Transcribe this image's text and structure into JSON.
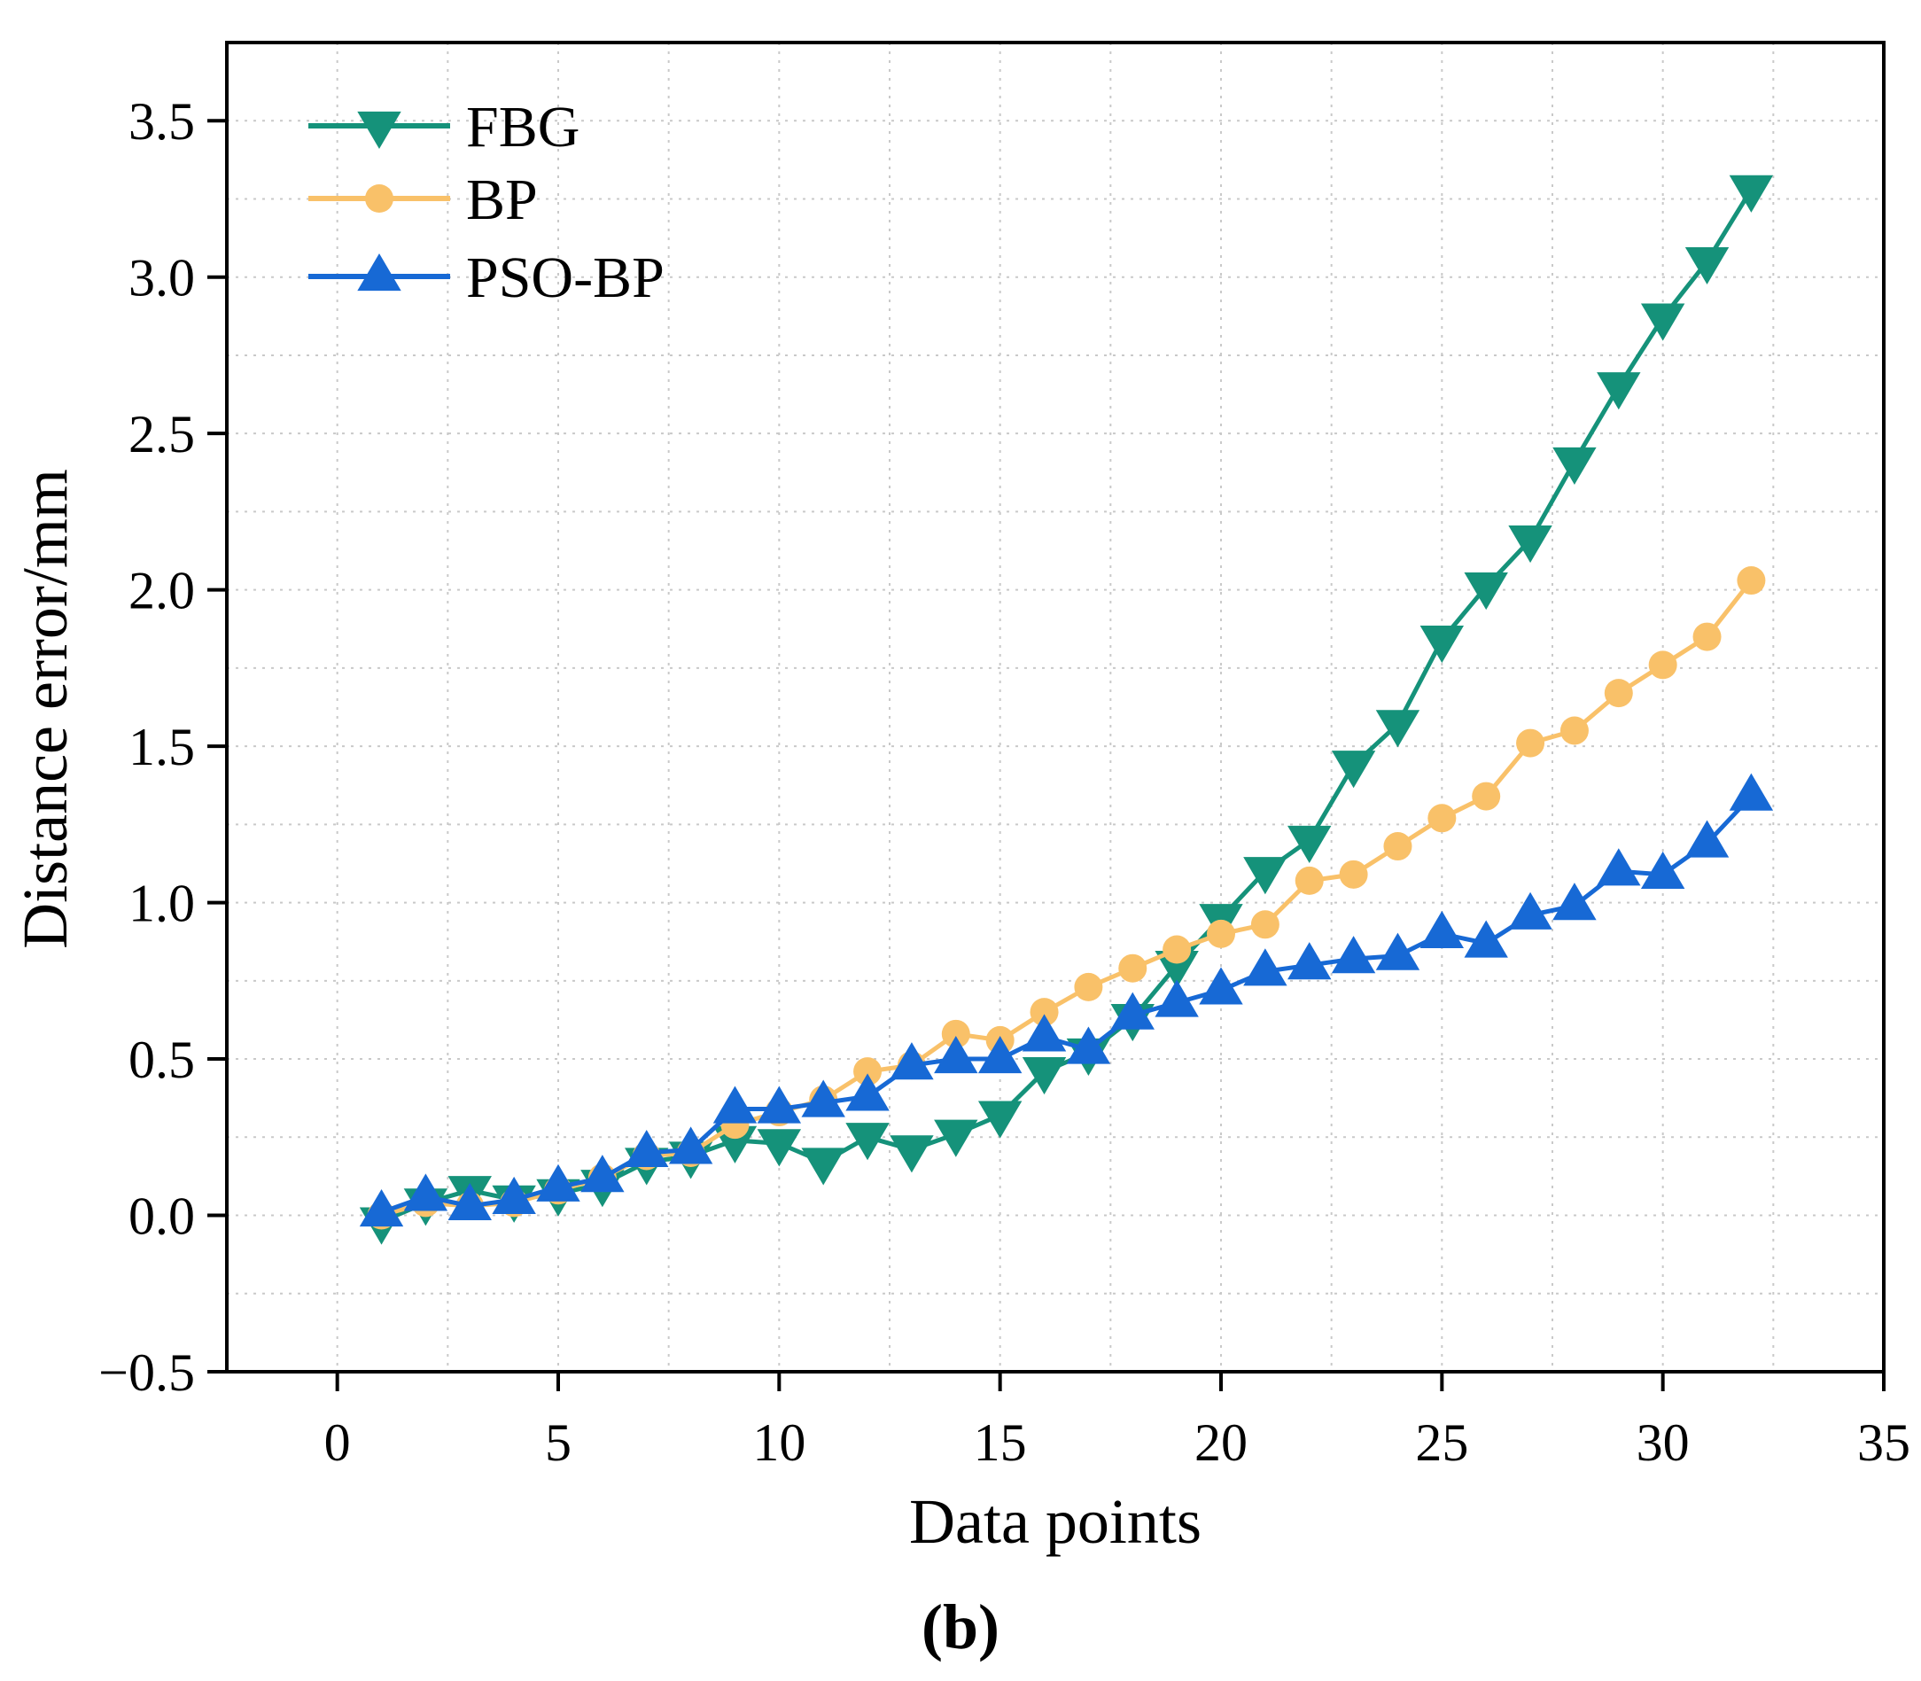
{
  "chart_data": {
    "type": "line",
    "title": "",
    "xlabel": "Data points",
    "ylabel": "Distance error/mm",
    "panel_label": "(b)",
    "xlim": [
      -2.5,
      35
    ],
    "ylim": [
      -0.5,
      3.75
    ],
    "xticks": [
      0,
      5,
      10,
      15,
      20,
      25,
      30,
      35
    ],
    "xtick_labels": [
      "0",
      "5",
      "10",
      "15",
      "20",
      "25",
      "30",
      "35"
    ],
    "yticks": [
      -0.5,
      0.0,
      0.5,
      1.0,
      1.5,
      2.0,
      2.5,
      3.0,
      3.5
    ],
    "ytick_labels": [
      "−0.5",
      "0.0",
      "0.5",
      "1.0",
      "1.5",
      "2.0",
      "2.5",
      "3.0",
      "3.5"
    ],
    "grid": true,
    "legend_position": "top-left",
    "x": [
      1,
      2,
      3,
      4,
      5,
      6,
      7,
      8,
      9,
      10,
      11,
      12,
      13,
      14,
      15,
      16,
      17,
      18,
      19,
      20,
      21,
      22,
      23,
      24,
      25,
      26,
      27,
      28,
      29,
      30,
      31,
      32
    ],
    "series": [
      {
        "name": "FBG",
        "color": "#15927a",
        "marker": "triangle-down",
        "values": [
          -0.02,
          0.04,
          0.08,
          0.05,
          0.07,
          0.1,
          0.17,
          0.19,
          0.24,
          0.23,
          0.17,
          0.25,
          0.21,
          0.26,
          0.32,
          0.46,
          0.52,
          0.63,
          0.8,
          0.95,
          1.1,
          1.2,
          1.44,
          1.57,
          1.84,
          2.01,
          2.16,
          2.41,
          2.65,
          2.87,
          3.05,
          3.28
        ]
      },
      {
        "name": "BP",
        "color": "#f9c169",
        "marker": "circle",
        "values": [
          0.0,
          0.04,
          0.03,
          0.04,
          0.08,
          0.12,
          0.19,
          0.2,
          0.29,
          0.33,
          0.37,
          0.46,
          0.48,
          0.58,
          0.56,
          0.65,
          0.73,
          0.79,
          0.85,
          0.9,
          0.93,
          1.07,
          1.09,
          1.18,
          1.27,
          1.34,
          1.51,
          1.55,
          1.67,
          1.76,
          1.85,
          2.03
        ]
      },
      {
        "name": "PSO-BP",
        "color": "#1769d5",
        "marker": "triangle-up",
        "values": [
          0.01,
          0.06,
          0.03,
          0.05,
          0.09,
          0.12,
          0.2,
          0.21,
          0.34,
          0.34,
          0.36,
          0.38,
          0.48,
          0.5,
          0.5,
          0.57,
          0.53,
          0.64,
          0.68,
          0.72,
          0.78,
          0.8,
          0.82,
          0.83,
          0.9,
          0.87,
          0.96,
          0.99,
          1.1,
          1.09,
          1.19,
          1.34
        ]
      }
    ]
  }
}
